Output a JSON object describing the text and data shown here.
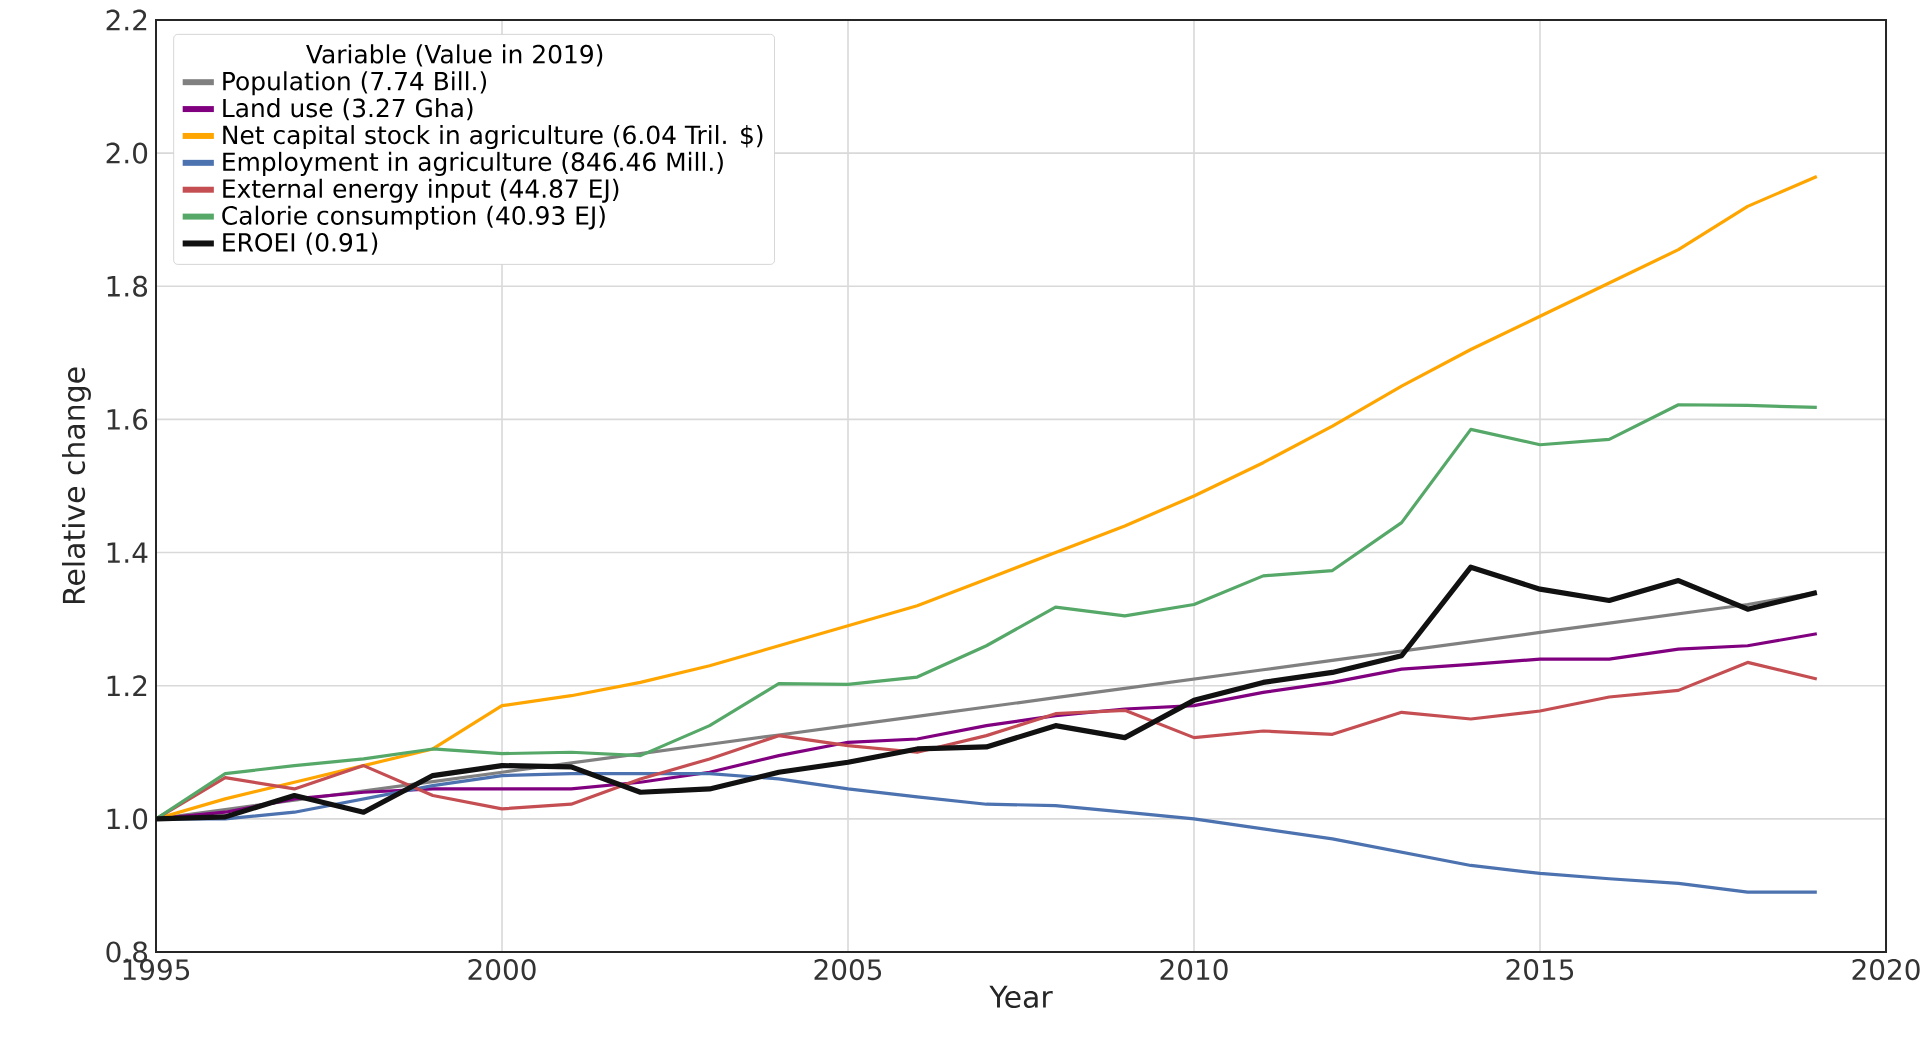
{
  "chart_data": {
    "type": "line",
    "xlabel": "Year",
    "ylabel": "Relative change",
    "legend_title": "Variable (Value in 2019)",
    "x": [
      1995,
      1996,
      1997,
      1998,
      1999,
      2000,
      2001,
      2002,
      2003,
      2004,
      2005,
      2006,
      2007,
      2008,
      2009,
      2010,
      2011,
      2012,
      2013,
      2014,
      2015,
      2016,
      2017,
      2018,
      2019
    ],
    "series": [
      {
        "name": "Population (7.74 Bill.)",
        "color": "#808080",
        "values": [
          1.0,
          1.014,
          1.028,
          1.042,
          1.056,
          1.07,
          1.084,
          1.098,
          1.112,
          1.126,
          1.14,
          1.154,
          1.168,
          1.182,
          1.196,
          1.21,
          1.224,
          1.238,
          1.252,
          1.266,
          1.28,
          1.294,
          1.308,
          1.322,
          1.34
        ]
      },
      {
        "name": "Land use (3.27 Gha)",
        "color": "#800080",
        "values": [
          1.0,
          1.01,
          1.03,
          1.04,
          1.045,
          1.045,
          1.045,
          1.055,
          1.07,
          1.095,
          1.115,
          1.12,
          1.14,
          1.155,
          1.165,
          1.17,
          1.19,
          1.205,
          1.225,
          1.232,
          1.24,
          1.24,
          1.255,
          1.26,
          1.278
        ]
      },
      {
        "name": "Net capital stock in agriculture (6.04 Tril. $)",
        "color": "#ffa500",
        "values": [
          1.0,
          1.03,
          1.055,
          1.08,
          1.105,
          1.17,
          1.185,
          1.205,
          1.23,
          1.26,
          1.29,
          1.32,
          1.36,
          1.4,
          1.44,
          1.485,
          1.535,
          1.59,
          1.65,
          1.705,
          1.755,
          1.805,
          1.855,
          1.92,
          1.965
        ]
      },
      {
        "name": "Employment in agriculture (846.46 Mill.)",
        "color": "#4c72b0",
        "values": [
          1.0,
          1.0,
          1.01,
          1.03,
          1.05,
          1.065,
          1.068,
          1.068,
          1.068,
          1.06,
          1.045,
          1.033,
          1.022,
          1.02,
          1.01,
          1.0,
          0.985,
          0.97,
          0.95,
          0.93,
          0.918,
          0.91,
          0.903,
          0.89,
          0.89
        ]
      },
      {
        "name": "External energy input (44.87 EJ)",
        "color": "#c44e52",
        "values": [
          1.0,
          1.062,
          1.045,
          1.08,
          1.035,
          1.015,
          1.022,
          1.06,
          1.09,
          1.125,
          1.11,
          1.1,
          1.125,
          1.158,
          1.163,
          1.122,
          1.132,
          1.127,
          1.16,
          1.15,
          1.162,
          1.183,
          1.193,
          1.235,
          1.21
        ]
      },
      {
        "name": "Calorie consumption (40.93 EJ)",
        "color": "#55a868",
        "values": [
          1.0,
          1.068,
          1.08,
          1.09,
          1.105,
          1.098,
          1.1,
          1.095,
          1.14,
          1.203,
          1.202,
          1.213,
          1.26,
          1.318,
          1.305,
          1.322,
          1.365,
          1.373,
          1.445,
          1.585,
          1.562,
          1.57,
          1.622,
          1.621,
          1.618
        ]
      },
      {
        "name": "EROEI (0.91)",
        "color": "#111111",
        "values": [
          1.0,
          1.003,
          1.035,
          1.01,
          1.065,
          1.08,
          1.078,
          1.04,
          1.045,
          1.07,
          1.085,
          1.105,
          1.108,
          1.14,
          1.122,
          1.178,
          1.205,
          1.22,
          1.245,
          1.378,
          1.345,
          1.328,
          1.358,
          1.315,
          1.34
        ]
      }
    ],
    "xlim": [
      1995,
      2020
    ],
    "xticks": [
      1995,
      2000,
      2005,
      2010,
      2015,
      2020
    ],
    "ylim": [
      0.8,
      2.2
    ],
    "yticks": [
      {
        "value": 0.8,
        "label": "0.8"
      },
      {
        "value": 1.0,
        "label": "1.0"
      },
      {
        "value": 1.2,
        "label": "1.2"
      },
      {
        "value": 1.4,
        "label": "1.4"
      },
      {
        "value": 1.6,
        "label": "1.6"
      },
      {
        "value": 1.8,
        "label": "1.8"
      },
      {
        "value": 2.0,
        "label": "2.0"
      },
      {
        "value": 2.2,
        "label": "2.2"
      }
    ],
    "grid": true,
    "legend": "top left",
    "marker": "none",
    "line_style": "solid"
  }
}
